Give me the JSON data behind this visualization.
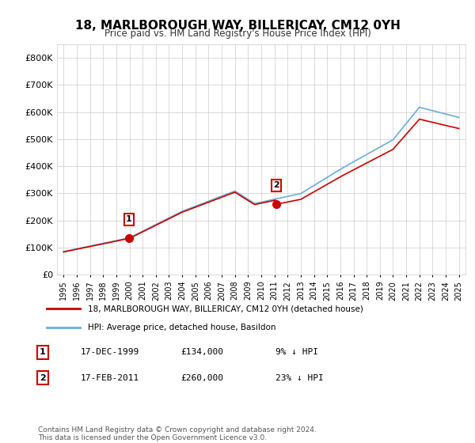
{
  "title": "18, MARLBOROUGH WAY, BILLERICAY, CM12 0YH",
  "subtitle": "Price paid vs. HM Land Registry's House Price Index (HPI)",
  "legend_line1": "18, MARLBOROUGH WAY, BILLERICAY, CM12 0YH (detached house)",
  "legend_line2": "HPI: Average price, detached house, Basildon",
  "footnote": "Contains HM Land Registry data © Crown copyright and database right 2024.\nThis data is licensed under the Open Government Licence v3.0.",
  "table_rows": [
    {
      "num": "1",
      "date": "17-DEC-1999",
      "price": "£134,000",
      "hpi": "9% ↓ HPI"
    },
    {
      "num": "2",
      "date": "17-FEB-2011",
      "price": "£260,000",
      "hpi": "23% ↓ HPI"
    }
  ],
  "sale1_year": 1999.96,
  "sale1_price": 134000,
  "sale2_year": 2011.12,
  "sale2_price": 260000,
  "hpi_color": "#6baed6",
  "price_color": "#cc0000",
  "background_color": "#ffffff",
  "grid_color": "#cccccc",
  "ylim": [
    0,
    850000
  ],
  "yticks": [
    0,
    100000,
    200000,
    300000,
    400000,
    500000,
    600000,
    700000,
    800000
  ],
  "xlabel_years": [
    "1995",
    "1996",
    "1997",
    "1998",
    "1999",
    "2000",
    "2001",
    "2002",
    "2003",
    "2004",
    "2005",
    "2006",
    "2007",
    "2008",
    "2009",
    "2010",
    "2011",
    "2012",
    "2013",
    "2014",
    "2015",
    "2016",
    "2017",
    "2018",
    "2019",
    "2020",
    "2021",
    "2022",
    "2023",
    "2024",
    "2025"
  ]
}
